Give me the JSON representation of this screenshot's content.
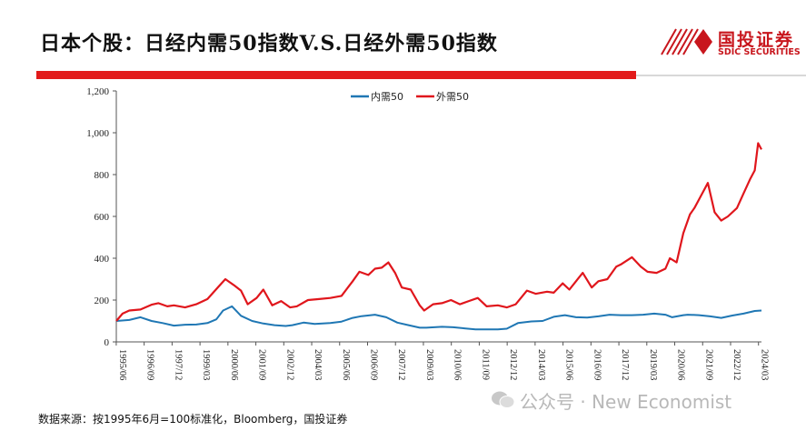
{
  "header": {
    "title": "日本个股：日经内需50指数V.S.日经外需50指数",
    "logo_cn": "国投证券",
    "logo_en": "SDIC SECURITIES"
  },
  "footer": {
    "source": "数据来源：按1995年6月=100标准化，Bloomberg，国投证券",
    "watermark": "公众号 · New Economist"
  },
  "colors": {
    "brand_red": "#e21a1a",
    "domestic": "#1f77b4",
    "external": "#e0161c"
  },
  "chart_data": {
    "type": "line",
    "y_ticks": [
      "0",
      "200",
      "400",
      "600",
      "800",
      "1,000",
      "1,200"
    ],
    "ylim": [
      0,
      1200
    ],
    "x_ticks": [
      "1995/06",
      "1996/09",
      "1997/12",
      "1999/03",
      "2000/06",
      "2001/09",
      "2002/12",
      "2004/03",
      "2005/06",
      "2006/09",
      "2007/12",
      "2009/03",
      "2010/06",
      "2011/09",
      "2012/12",
      "2014/03",
      "2015/06",
      "2016/09",
      "2017/12",
      "2019/03",
      "2020/06",
      "2021/09",
      "2022/12",
      "2024/03"
    ],
    "legend_position": "top-center",
    "grid": false,
    "series": [
      {
        "name": "内需50",
        "color": "#1f77b4",
        "x": [
          1995.42,
          1996.0,
          1996.5,
          1997.0,
          1997.5,
          1998.0,
          1998.5,
          1999.0,
          1999.5,
          1999.9,
          2000.2,
          2000.6,
          2001.0,
          2001.5,
          2002.0,
          2002.5,
          2003.0,
          2003.3,
          2003.8,
          2004.3,
          2005.0,
          2005.5,
          2006.0,
          2006.4,
          2007.0,
          2007.5,
          2008.0,
          2008.5,
          2009.0,
          2009.3,
          2010.0,
          2010.5,
          2011.0,
          2011.5,
          2012.0,
          2012.5,
          2012.9,
          2013.4,
          2014.0,
          2014.5,
          2015.0,
          2015.5,
          2016.0,
          2016.5,
          2017.0,
          2017.5,
          2018.0,
          2018.5,
          2019.0,
          2019.5,
          2020.0,
          2020.3,
          2020.8,
          2021.0,
          2021.5,
          2022.0,
          2022.5,
          2023.0,
          2023.5,
          2024.0,
          2024.3
        ],
        "values": [
          100,
          105,
          118,
          100,
          90,
          78,
          82,
          83,
          90,
          108,
          150,
          170,
          125,
          100,
          88,
          80,
          76,
          80,
          92,
          86,
          90,
          97,
          115,
          123,
          130,
          118,
          92,
          80,
          68,
          68,
          72,
          70,
          65,
          60,
          60,
          60,
          63,
          90,
          98,
          100,
          120,
          128,
          118,
          116,
          122,
          130,
          128,
          128,
          130,
          135,
          130,
          118,
          128,
          130,
          128,
          122,
          115,
          126,
          135,
          148,
          150
        ]
      },
      {
        "name": "外需50",
        "color": "#e0161c",
        "x": [
          1995.42,
          1995.7,
          1996.0,
          1996.5,
          1997.0,
          1997.3,
          1997.7,
          1998.0,
          1998.5,
          1999.0,
          1999.5,
          2000.0,
          2000.3,
          2000.7,
          2001.0,
          2001.3,
          2001.7,
          2002.0,
          2002.4,
          2002.8,
          2003.2,
          2003.5,
          2004.0,
          2004.5,
          2005.0,
          2005.5,
          2006.0,
          2006.3,
          2006.7,
          2007.0,
          2007.3,
          2007.6,
          2007.9,
          2008.2,
          2008.6,
          2009.0,
          2009.2,
          2009.6,
          2010.0,
          2010.4,
          2010.8,
          2011.2,
          2011.6,
          2012.0,
          2012.5,
          2012.9,
          2013.3,
          2013.8,
          2014.2,
          2014.7,
          2015.0,
          2015.4,
          2015.7,
          2016.0,
          2016.3,
          2016.7,
          2017.0,
          2017.4,
          2017.8,
          2018.0,
          2018.5,
          2018.9,
          2019.2,
          2019.6,
          2020.0,
          2020.2,
          2020.5,
          2020.8,
          2021.1,
          2021.3,
          2021.6,
          2021.9,
          2022.2,
          2022.5,
          2022.8,
          2023.2,
          2023.5,
          2023.8,
          2024.0,
          2024.15,
          2024.3
        ],
        "values": [
          100,
          135,
          150,
          155,
          178,
          185,
          170,
          175,
          165,
          180,
          205,
          265,
          300,
          270,
          245,
          180,
          210,
          250,
          175,
          195,
          165,
          170,
          200,
          205,
          210,
          220,
          290,
          335,
          320,
          350,
          355,
          380,
          330,
          260,
          250,
          175,
          150,
          180,
          185,
          200,
          180,
          195,
          210,
          170,
          175,
          165,
          180,
          245,
          230,
          240,
          235,
          280,
          250,
          290,
          330,
          260,
          290,
          300,
          360,
          370,
          405,
          360,
          335,
          330,
          350,
          400,
          380,
          520,
          610,
          640,
          700,
          760,
          620,
          580,
          600,
          640,
          710,
          780,
          820,
          950,
          920
        ]
      }
    ]
  }
}
